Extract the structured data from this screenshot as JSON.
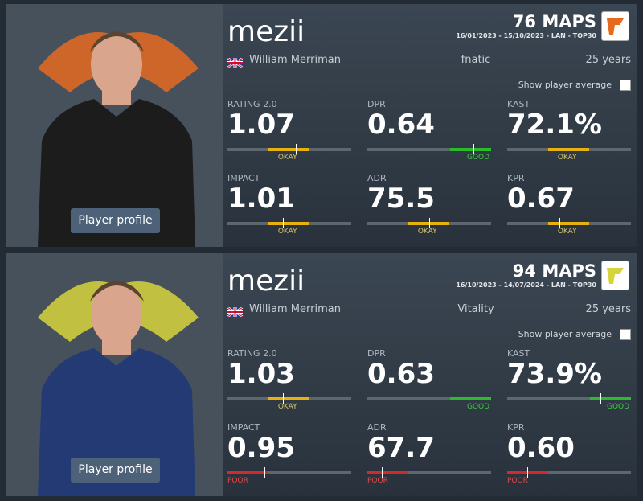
{
  "players": [
    {
      "name": "mezii",
      "real_name": "William Merriman",
      "team": "fnatic",
      "age": "25 years",
      "maps": "76 MAPS",
      "period": "16/01/2023 - 15/10/2023 - LAN - TOP30",
      "show_average": "Show player average",
      "profile_button": "Player profile",
      "stats": [
        {
          "label": "RATING 2.0",
          "value": "1.07",
          "rating": "OKAY"
        },
        {
          "label": "DPR",
          "value": "0.64",
          "rating": "GOOD"
        },
        {
          "label": "KAST",
          "value": "72.1%",
          "rating": "OKAY"
        },
        {
          "label": "IMPACT",
          "value": "1.01",
          "rating": "OKAY"
        },
        {
          "label": "ADR",
          "value": "75.5",
          "rating": "OKAY"
        },
        {
          "label": "KPR",
          "value": "0.67",
          "rating": "OKAY"
        }
      ]
    },
    {
      "name": "mezii",
      "real_name": "William Merriman",
      "team": "Vitality",
      "age": "25 years",
      "maps": "94 MAPS",
      "period": "16/10/2023 - 14/07/2024 - LAN - TOP30",
      "show_average": "Show player average",
      "profile_button": "Player profile",
      "stats": [
        {
          "label": "RATING 2.0",
          "value": "1.03",
          "rating": "OKAY"
        },
        {
          "label": "DPR",
          "value": "0.63",
          "rating": "GOOD"
        },
        {
          "label": "KAST",
          "value": "73.9%",
          "rating": "GOOD"
        },
        {
          "label": "IMPACT",
          "value": "0.95",
          "rating": "POOR"
        },
        {
          "label": "ADR",
          "value": "67.7",
          "rating": "POOR"
        },
        {
          "label": "KPR",
          "value": "0.60",
          "rating": "POOR"
        }
      ]
    }
  ]
}
